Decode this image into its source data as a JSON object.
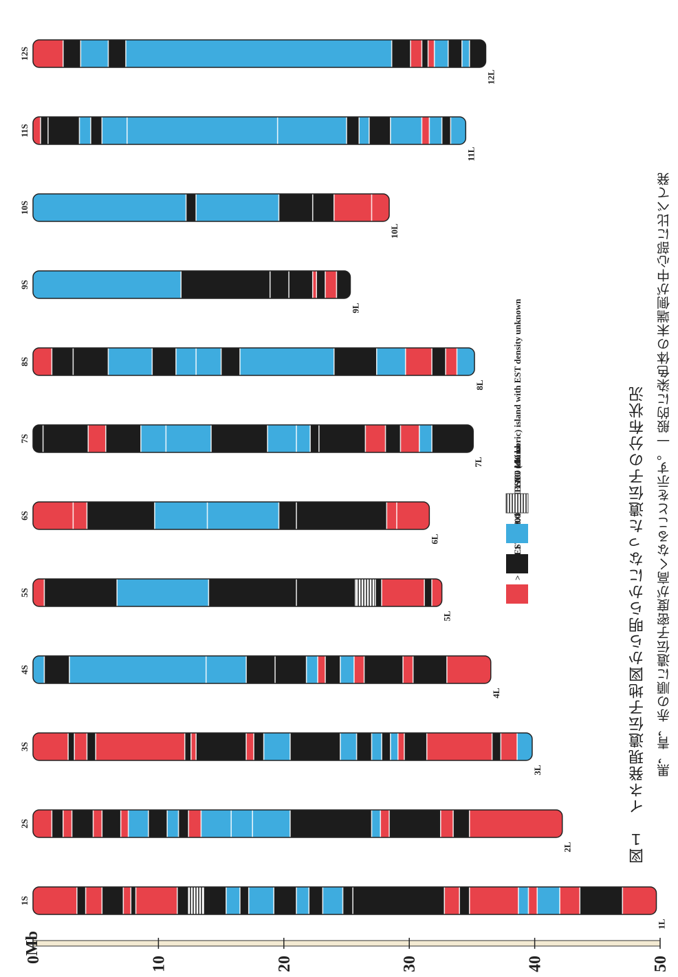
{
  "axis": {
    "unit_label": "Mb",
    "ticks": [
      0,
      10,
      20,
      30,
      40,
      50
    ]
  },
  "colors": {
    "red": "#e8424a",
    "black": "#1c1c1c",
    "blue": "#3eacdf",
    "yac": "#9a9a9a",
    "outline": "#222222"
  },
  "legend": {
    "items": [
      {
        "label": "> 3.00 EST / 100 kb",
        "color": "red"
      },
      {
        "label": "1 .50~ 3.00 EST / 100 kb",
        "color": "black"
      },
      {
        "label": "< 1 .50 EST / 100 kb",
        "color": "blue"
      },
      {
        "label": "YAC (chimeric) island with EST density unknown",
        "color": "yac"
      }
    ]
  },
  "caption": {
    "title": "図１　イネ発現遺伝子地図から明らかになった遺伝子の分布状況",
    "body": "黒，青，赤の順に遺伝子密度が高くなることを示す。一般的に染色体の末端側が中心部に比べて発"
  },
  "chromosomes": [
    {
      "short": "1S",
      "long": "1L",
      "length_mb": 49.7,
      "segments": [
        [
          0,
          3.5,
          "red"
        ],
        [
          3.5,
          4.2,
          "black"
        ],
        [
          4.2,
          5.5,
          "red"
        ],
        [
          5.5,
          7.2,
          "black"
        ],
        [
          7.2,
          7.8,
          "red"
        ],
        [
          7.8,
          8.2,
          "black"
        ],
        [
          8.2,
          11.5,
          "red"
        ],
        [
          11.5,
          12.4,
          "black"
        ],
        [
          12.4,
          13.6,
          "yac"
        ],
        [
          13.6,
          15.4,
          "black"
        ],
        [
          15.4,
          16.5,
          "blue"
        ],
        [
          16.5,
          17.2,
          "black"
        ],
        [
          17.2,
          19.2,
          "blue"
        ],
        [
          19.2,
          21.0,
          "black"
        ],
        [
          21.0,
          22.0,
          "blue"
        ],
        [
          22.0,
          23.1,
          "black"
        ],
        [
          23.1,
          24.7,
          "blue"
        ],
        [
          24.7,
          25.5,
          "black"
        ],
        [
          25.5,
          32.8,
          "black"
        ],
        [
          32.8,
          34.0,
          "red"
        ],
        [
          34.0,
          34.8,
          "black"
        ],
        [
          34.8,
          38.7,
          "red"
        ],
        [
          38.7,
          39.5,
          "blue"
        ],
        [
          39.5,
          40.2,
          "red"
        ],
        [
          40.2,
          42.0,
          "blue"
        ],
        [
          42.0,
          43.6,
          "red"
        ],
        [
          43.6,
          47.0,
          "black"
        ],
        [
          47.0,
          49.7,
          "red"
        ]
      ]
    },
    {
      "short": "2S",
      "long": "2L",
      "length_mb": 42.2,
      "segments": [
        [
          0,
          1.5,
          "red"
        ],
        [
          1.5,
          2.4,
          "black"
        ],
        [
          2.4,
          3.1,
          "red"
        ],
        [
          3.1,
          4.8,
          "black"
        ],
        [
          4.8,
          5.5,
          "red"
        ],
        [
          5.5,
          7.0,
          "black"
        ],
        [
          7.0,
          7.6,
          "red"
        ],
        [
          7.6,
          9.2,
          "blue"
        ],
        [
          9.2,
          10.7,
          "black"
        ],
        [
          10.7,
          11.6,
          "blue"
        ],
        [
          11.6,
          12.4,
          "black"
        ],
        [
          12.4,
          13.4,
          "red"
        ],
        [
          13.4,
          15.8,
          "blue"
        ],
        [
          15.8,
          17.5,
          "blue"
        ],
        [
          17.5,
          20.5,
          "blue"
        ],
        [
          20.5,
          27.0,
          "black"
        ],
        [
          27.0,
          27.7,
          "blue"
        ],
        [
          27.7,
          28.4,
          "red"
        ],
        [
          28.4,
          32.5,
          "black"
        ],
        [
          32.5,
          33.5,
          "red"
        ],
        [
          33.5,
          34.8,
          "black"
        ],
        [
          34.8,
          42.2,
          "red"
        ]
      ]
    },
    {
      "short": "3S",
      "long": "3L",
      "length_mb": 39.8,
      "segments": [
        [
          0,
          2.8,
          "red"
        ],
        [
          2.8,
          3.3,
          "black"
        ],
        [
          3.3,
          4.3,
          "red"
        ],
        [
          4.3,
          5.0,
          "black"
        ],
        [
          5.0,
          12.1,
          "red"
        ],
        [
          12.1,
          12.6,
          "black"
        ],
        [
          12.6,
          13.0,
          "red"
        ],
        [
          13.0,
          17.0,
          "black"
        ],
        [
          17.0,
          17.6,
          "red"
        ],
        [
          17.6,
          18.4,
          "black"
        ],
        [
          18.4,
          20.5,
          "blue"
        ],
        [
          20.5,
          24.5,
          "black"
        ],
        [
          24.5,
          25.8,
          "blue"
        ],
        [
          25.8,
          27.0,
          "black"
        ],
        [
          27.0,
          27.8,
          "blue"
        ],
        [
          27.8,
          28.5,
          "black"
        ],
        [
          28.5,
          29.1,
          "blue"
        ],
        [
          29.1,
          29.6,
          "red"
        ],
        [
          29.6,
          31.4,
          "black"
        ],
        [
          31.4,
          36.6,
          "red"
        ],
        [
          36.6,
          37.3,
          "black"
        ],
        [
          37.3,
          38.6,
          "red"
        ],
        [
          38.6,
          39.8,
          "blue"
        ]
      ]
    },
    {
      "short": "4S",
      "long": "4L",
      "length_mb": 36.5,
      "segments": [
        [
          0,
          0.9,
          "blue"
        ],
        [
          0.9,
          2.9,
          "black"
        ],
        [
          2.9,
          13.8,
          "blue"
        ],
        [
          13.8,
          17.0,
          "blue"
        ],
        [
          17.0,
          19.3,
          "black"
        ],
        [
          19.3,
          21.8,
          "black"
        ],
        [
          21.8,
          22.7,
          "blue"
        ],
        [
          22.7,
          23.3,
          "red"
        ],
        [
          23.3,
          24.5,
          "black"
        ],
        [
          24.5,
          25.6,
          "blue"
        ],
        [
          25.6,
          26.4,
          "red"
        ],
        [
          26.4,
          29.5,
          "black"
        ],
        [
          29.5,
          30.3,
          "red"
        ],
        [
          30.3,
          33.0,
          "black"
        ],
        [
          33.0,
          36.5,
          "red"
        ]
      ]
    },
    {
      "short": "5S",
      "long": "5L",
      "length_mb": 32.6,
      "segments": [
        [
          0,
          0.9,
          "red"
        ],
        [
          0.9,
          6.7,
          "black"
        ],
        [
          6.7,
          14.0,
          "blue"
        ],
        [
          14.0,
          21.0,
          "black"
        ],
        [
          21.0,
          25.7,
          "black"
        ],
        [
          25.7,
          27.3,
          "yac"
        ],
        [
          27.3,
          27.8,
          "black"
        ],
        [
          27.8,
          31.2,
          "red"
        ],
        [
          31.2,
          31.8,
          "black"
        ],
        [
          31.8,
          32.6,
          "red"
        ]
      ]
    },
    {
      "short": "6S",
      "long": "6L",
      "length_mb": 31.6,
      "segments": [
        [
          0,
          3.2,
          "red"
        ],
        [
          3.2,
          4.3,
          "red"
        ],
        [
          4.3,
          9.7,
          "black"
        ],
        [
          9.7,
          13.9,
          "blue"
        ],
        [
          13.9,
          19.6,
          "blue"
        ],
        [
          19.6,
          21.0,
          "black"
        ],
        [
          21.0,
          28.2,
          "black"
        ],
        [
          28.2,
          29.0,
          "red"
        ],
        [
          29.0,
          31.6,
          "red"
        ]
      ]
    },
    {
      "short": "7S",
      "long": "7L",
      "length_mb": 35.1,
      "segments": [
        [
          0,
          0.8,
          "black"
        ],
        [
          0.8,
          4.4,
          "black"
        ],
        [
          4.4,
          5.8,
          "red"
        ],
        [
          5.8,
          8.6,
          "black"
        ],
        [
          8.6,
          10.6,
          "blue"
        ],
        [
          10.6,
          14.2,
          "blue"
        ],
        [
          14.2,
          18.7,
          "black"
        ],
        [
          18.7,
          21.0,
          "blue"
        ],
        [
          21.0,
          22.1,
          "blue"
        ],
        [
          22.1,
          22.8,
          "black"
        ],
        [
          22.8,
          26.5,
          "black"
        ],
        [
          26.5,
          28.1,
          "red"
        ],
        [
          28.1,
          29.3,
          "black"
        ],
        [
          29.3,
          30.8,
          "red"
        ],
        [
          30.8,
          31.8,
          "blue"
        ],
        [
          31.8,
          35.1,
          "black"
        ]
      ]
    },
    {
      "short": "8S",
      "long": "8L",
      "length_mb": 35.2,
      "segments": [
        [
          0,
          1.5,
          "red"
        ],
        [
          1.5,
          3.2,
          "black"
        ],
        [
          3.2,
          6.0,
          "black"
        ],
        [
          6.0,
          9.5,
          "blue"
        ],
        [
          9.5,
          11.4,
          "black"
        ],
        [
          11.4,
          13.0,
          "blue"
        ],
        [
          13.0,
          15.0,
          "blue"
        ],
        [
          15.0,
          16.5,
          "black"
        ],
        [
          16.5,
          24.0,
          "blue"
        ],
        [
          24.0,
          27.4,
          "black"
        ],
        [
          27.4,
          29.7,
          "blue"
        ],
        [
          29.7,
          31.8,
          "red"
        ],
        [
          31.8,
          32.9,
          "black"
        ],
        [
          32.9,
          33.8,
          "red"
        ],
        [
          33.8,
          35.2,
          "blue"
        ]
      ]
    },
    {
      "short": "9S",
      "long": "9L",
      "length_mb": 25.3,
      "segments": [
        [
          0,
          11.8,
          "blue"
        ],
        [
          11.8,
          18.9,
          "black"
        ],
        [
          18.9,
          20.4,
          "black"
        ],
        [
          20.4,
          22.3,
          "black"
        ],
        [
          22.3,
          22.6,
          "red"
        ],
        [
          22.6,
          23.3,
          "black"
        ],
        [
          23.3,
          24.2,
          "red"
        ],
        [
          24.2,
          25.3,
          "black"
        ]
      ]
    },
    {
      "short": "10S",
      "long": "10L",
      "length_mb": 28.4,
      "segments": [
        [
          0,
          12.2,
          "blue"
        ],
        [
          12.2,
          13.0,
          "black"
        ],
        [
          13.0,
          19.6,
          "blue"
        ],
        [
          19.6,
          22.3,
          "black"
        ],
        [
          22.3,
          24.0,
          "black"
        ],
        [
          24.0,
          27.0,
          "red"
        ],
        [
          27.0,
          28.4,
          "red"
        ]
      ]
    },
    {
      "short": "11S",
      "long": "11L",
      "length_mb": 34.5,
      "segments": [
        [
          0,
          0.6,
          "red"
        ],
        [
          0.6,
          1.2,
          "black"
        ],
        [
          1.2,
          3.7,
          "black"
        ],
        [
          3.7,
          4.6,
          "blue"
        ],
        [
          4.6,
          5.5,
          "black"
        ],
        [
          5.5,
          7.5,
          "blue"
        ],
        [
          7.5,
          19.5,
          "blue"
        ],
        [
          19.5,
          25.0,
          "blue"
        ],
        [
          25.0,
          26.0,
          "black"
        ],
        [
          26.0,
          26.8,
          "blue"
        ],
        [
          26.8,
          28.5,
          "black"
        ],
        [
          28.5,
          31.0,
          "blue"
        ],
        [
          31.0,
          31.6,
          "red"
        ],
        [
          31.6,
          32.6,
          "blue"
        ],
        [
          32.6,
          33.3,
          "black"
        ],
        [
          33.3,
          34.5,
          "blue"
        ]
      ]
    },
    {
      "short": "12S",
      "long": "12L",
      "length_mb": 36.1,
      "segments": [
        [
          0,
          2.4,
          "red"
        ],
        [
          2.4,
          3.8,
          "black"
        ],
        [
          3.8,
          6.0,
          "blue"
        ],
        [
          6.0,
          7.4,
          "black"
        ],
        [
          7.4,
          28.6,
          "blue"
        ],
        [
          28.6,
          30.1,
          "black"
        ],
        [
          30.1,
          31.0,
          "red"
        ],
        [
          31.0,
          31.5,
          "black"
        ],
        [
          31.5,
          32.0,
          "red"
        ],
        [
          32.0,
          33.1,
          "blue"
        ],
        [
          33.1,
          34.2,
          "black"
        ],
        [
          34.2,
          34.8,
          "blue"
        ],
        [
          34.8,
          36.1,
          "black"
        ]
      ]
    }
  ]
}
